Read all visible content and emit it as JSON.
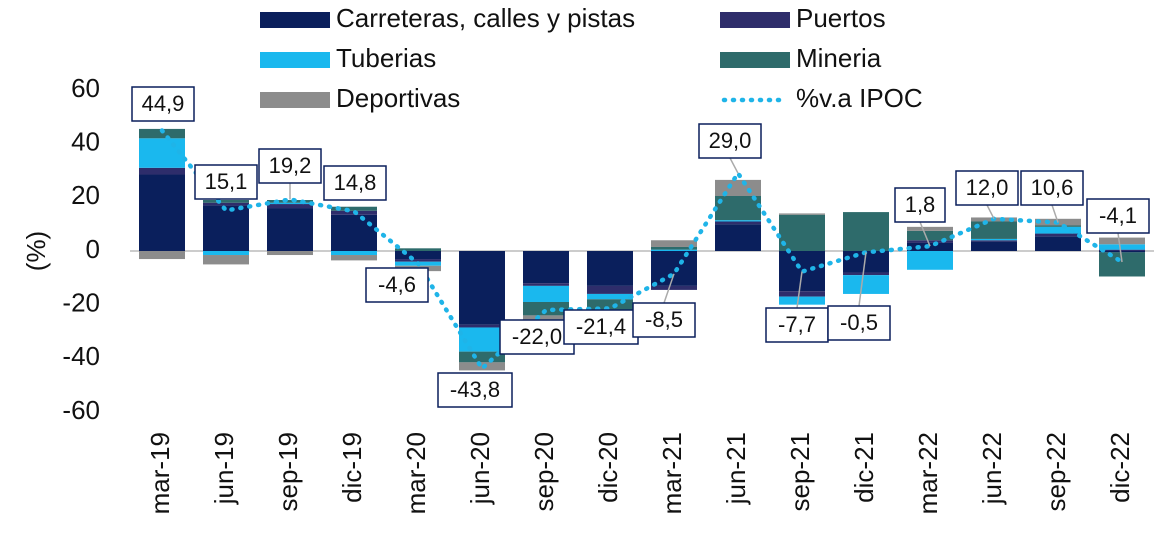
{
  "chart_data": {
    "type": "bar",
    "y_label": "(%)",
    "categories": [
      "mar-19",
      "jun-19",
      "sep-19",
      "dic-19",
      "mar-20",
      "jun-20",
      "sep-20",
      "dic-20",
      "mar-21",
      "jun-21",
      "sep-21",
      "dic-21",
      "mar-22",
      "jun-22",
      "sep-22",
      "dic-22"
    ],
    "series": [
      {
        "name": "Carreteras, calles y pistas",
        "color": "#0a1f5c",
        "values": [
          28.5,
          17,
          16,
          13.5,
          -3,
          -27.5,
          -12,
          -13,
          -13,
          10,
          -15,
          -8,
          3,
          3.5,
          5.5,
          -0.5
        ]
      },
      {
        "name": "Puertos",
        "color": "#2e2d6b",
        "values": [
          2.5,
          1,
          1.5,
          1.5,
          -1,
          -1,
          -1,
          -3,
          -1.5,
          1,
          -2,
          -1,
          1,
          0.5,
          1,
          0.5
        ]
      },
      {
        "name": "Tuberias",
        "color": "#1ab8ee",
        "values": [
          11,
          -1.5,
          0.5,
          -1.5,
          -1.5,
          -9,
          -6,
          -2,
          0.5,
          0.5,
          -3,
          -7,
          -7,
          0.5,
          2.5,
          2
        ]
      },
      {
        "name": "Mineria",
        "color": "#2e6b6b",
        "values": [
          3.5,
          1,
          1,
          1.5,
          1,
          -4,
          -5,
          -4,
          1,
          9,
          13.5,
          14.5,
          3.5,
          6.5,
          0.5,
          -9
        ]
      },
      {
        "name": "Deportivas",
        "color": "#8c8c8c",
        "values": [
          -3,
          -3.5,
          -1.5,
          -2,
          -2,
          -3,
          -3,
          -2,
          2.5,
          6,
          0.5,
          0,
          1.5,
          1.5,
          2.5,
          2.5
        ]
      },
      {
        "name": "%v.a IPOC",
        "type": "line",
        "color": "#1fb4e8",
        "values": [
          44.9,
          15.1,
          19.2,
          14.8,
          -4.6,
          -43.8,
          -22.0,
          -21.4,
          -8.5,
          29.0,
          -7.7,
          -0.5,
          1.8,
          12.0,
          10.6,
          -4.1
        ],
        "value_labels": [
          "44,9",
          "15,1",
          "19,2",
          "14,8",
          "-4,6",
          "-43,8",
          "-22,0",
          "-21,4",
          "-8,5",
          "29,0",
          "-7,7",
          "-0,5",
          "1,8",
          "12,0",
          "10,6",
          "-4,1"
        ]
      }
    ],
    "ylim": [
      -60,
      60
    ],
    "yticks": [
      -60,
      -40,
      -20,
      0,
      20,
      40,
      60
    ]
  }
}
